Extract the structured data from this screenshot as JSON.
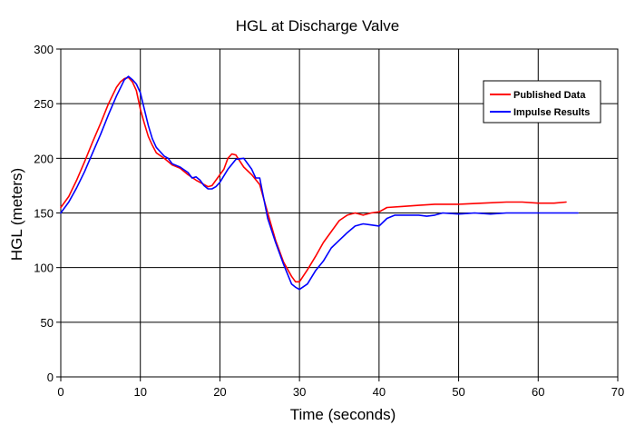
{
  "chart_data": {
    "type": "line",
    "title": "HGL at Discharge Valve",
    "xlabel": "Time (seconds)",
    "ylabel": "HGL (meters)",
    "xlim": [
      0,
      70
    ],
    "ylim": [
      0,
      300
    ],
    "x_ticks": [
      0,
      10,
      20,
      30,
      40,
      50,
      60,
      70
    ],
    "y_ticks": [
      0,
      50,
      100,
      150,
      200,
      250,
      300
    ],
    "x_tick_labels": [
      "0",
      "10",
      "20",
      "30",
      "40",
      "50",
      "60",
      "70"
    ],
    "y_tick_labels": [
      "0",
      "50",
      "100",
      "150",
      "200",
      "250",
      "300"
    ],
    "grid": true,
    "legend_position": "top-right",
    "series": [
      {
        "name": "Published Data",
        "color": "#ff0000",
        "x": [
          0,
          1,
          2,
          3,
          4,
          5,
          6,
          7,
          7.5,
          8,
          8.5,
          9,
          9.5,
          10,
          10.5,
          11,
          11.5,
          12,
          13,
          14,
          15,
          16,
          17,
          18,
          18.5,
          19,
          20,
          20.5,
          21,
          21.5,
          22,
          23,
          24,
          25,
          26,
          27,
          28,
          29,
          29.5,
          30,
          31,
          32,
          33,
          34,
          35,
          36,
          37,
          38,
          39,
          40,
          41,
          43,
          45,
          47,
          50,
          53,
          56,
          58,
          60,
          62,
          63.5
        ],
        "y": [
          155,
          165,
          180,
          197,
          215,
          232,
          250,
          265,
          270,
          273,
          274,
          270,
          262,
          245,
          232,
          220,
          212,
          205,
          200,
          194,
          191,
          185,
          180,
          176,
          174,
          175,
          185,
          190,
          200,
          204,
          203,
          192,
          185,
          176,
          150,
          125,
          105,
          92,
          87,
          87,
          98,
          110,
          123,
          133,
          143,
          148,
          150,
          148,
          150,
          151,
          155,
          156,
          157,
          158,
          158,
          159,
          160,
          160,
          159,
          159,
          160
        ]
      },
      {
        "name": "Impulse Results",
        "color": "#0000ff",
        "x": [
          0,
          1,
          2,
          3,
          4,
          5,
          6,
          7,
          8,
          8.5,
          9,
          9.5,
          10,
          10.5,
          11,
          11.5,
          12,
          13,
          13.5,
          14,
          15,
          16,
          16.5,
          17,
          17.5,
          18,
          18.5,
          19,
          19.5,
          20,
          21,
          22,
          23,
          24,
          24.5,
          25,
          26,
          27,
          28,
          29,
          29.5,
          30,
          31,
          32,
          33,
          34,
          35,
          36,
          37,
          38,
          39,
          40,
          41,
          42,
          43,
          44,
          45,
          46,
          47,
          48,
          50,
          52,
          54,
          56,
          58,
          60,
          62,
          65
        ],
        "y": [
          150,
          160,
          173,
          188,
          205,
          222,
          240,
          257,
          272,
          275,
          272,
          268,
          260,
          245,
          230,
          218,
          210,
          202,
          200,
          195,
          192,
          187,
          182,
          183,
          180,
          175,
          172,
          172,
          174,
          178,
          190,
          199,
          200,
          190,
          182,
          182,
          145,
          123,
          103,
          85,
          82,
          80,
          85,
          97,
          106,
          118,
          125,
          132,
          138,
          140,
          139,
          138,
          145,
          148,
          148,
          148,
          148,
          147,
          148,
          150,
          149,
          150,
          149,
          150,
          150,
          150,
          150,
          150
        ]
      }
    ]
  }
}
